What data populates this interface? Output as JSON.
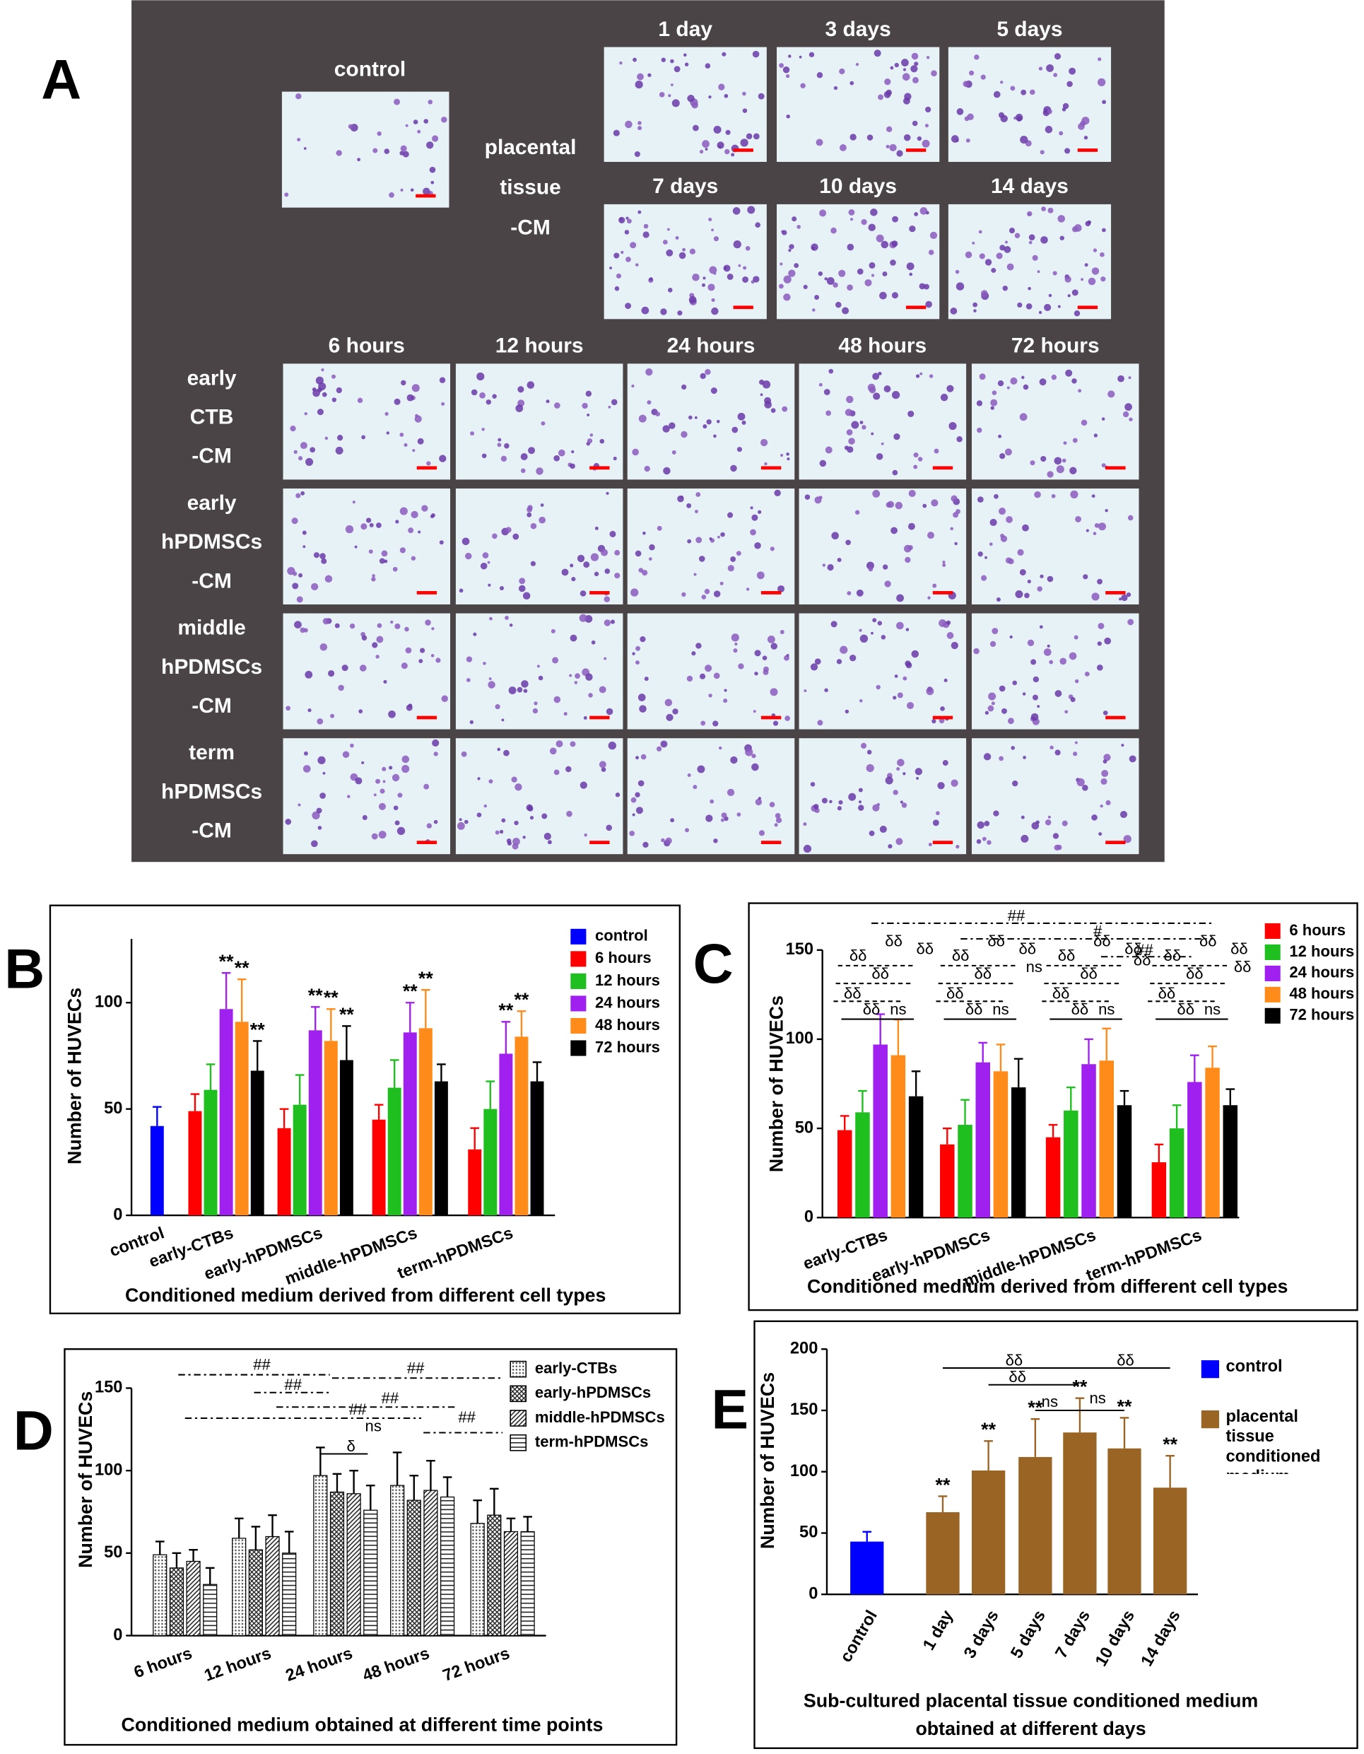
{
  "panel_a": {
    "panel_label": "A",
    "control": "control",
    "tissue_label": [
      "placental",
      "tissue",
      "-CM"
    ],
    "tissue_days": [
      "1 day",
      "3 days",
      "5 days",
      "7 days",
      "10 days",
      "14 days"
    ],
    "hours": [
      "6 hours",
      "12 hours",
      "24 hours",
      "48 hours",
      "72 hours"
    ],
    "rows": [
      [
        "early",
        "CTB",
        "-CM"
      ],
      [
        "early",
        "hPDMSCs",
        "-CM"
      ],
      [
        "middle",
        "hPDMSCs",
        "-CM"
      ],
      [
        "term",
        "hPDMSCs",
        "-CM"
      ]
    ]
  },
  "chart_data": [
    {
      "type": "bar",
      "panel_label": "B",
      "title": "Conditioned medium derived from different cell types",
      "y_label": "Number of HUVECs",
      "categories": [
        "control",
        "early-CTBs",
        "early-hPDMSCs",
        "middle-hPDMSCs",
        "term-hPDMSCs"
      ],
      "ylim": [
        0,
        130
      ],
      "yticks": [
        0,
        50,
        100
      ],
      "series": [
        {
          "name": "control",
          "color": "#0000ff",
          "values": [
            42,
            null,
            null,
            null,
            null
          ],
          "errors": [
            9,
            null,
            null,
            null,
            null
          ]
        },
        {
          "name": "6 hours",
          "color": "#ff0000",
          "values": [
            null,
            49,
            41,
            45,
            31
          ],
          "errors": [
            null,
            8,
            9,
            7,
            10
          ]
        },
        {
          "name": "12 hours",
          "color": "#1fbf1f",
          "values": [
            null,
            59,
            52,
            60,
            50
          ],
          "errors": [
            null,
            12,
            14,
            13,
            13
          ]
        },
        {
          "name": "24 hours",
          "color": "#a020f0",
          "values": [
            null,
            97,
            87,
            86,
            76
          ],
          "errors": [
            null,
            17,
            11,
            14,
            15
          ],
          "sig": [
            null,
            "**",
            "**",
            "**",
            "**"
          ]
        },
        {
          "name": "48 hours",
          "color": "#ff8c1a",
          "values": [
            null,
            91,
            82,
            88,
            84
          ],
          "errors": [
            null,
            20,
            15,
            18,
            12
          ],
          "sig": [
            null,
            "**",
            "**",
            "**",
            "**"
          ]
        },
        {
          "name": "72 hours",
          "color": "#000000",
          "values": [
            null,
            68,
            73,
            63,
            63
          ],
          "errors": [
            null,
            14,
            16,
            8,
            9
          ],
          "sig": [
            null,
            "**",
            "**",
            null,
            null
          ]
        }
      ]
    },
    {
      "type": "bar",
      "panel_label": "C",
      "title": "Conditioned medium derived from different cell types",
      "y_label": "Number of HUVECs",
      "categories": [
        "early-CTBs",
        "early-hPDMSCs",
        "middle-hPDMSCs",
        "term-hPDMSCs"
      ],
      "ylim": [
        0,
        150
      ],
      "yticks": [
        0,
        50,
        100,
        150
      ],
      "series": [
        {
          "name": "6 hours",
          "color": "#ff0000",
          "values": [
            49,
            41,
            45,
            31
          ],
          "errors": [
            8,
            9,
            7,
            10
          ]
        },
        {
          "name": "12 hours",
          "color": "#1fbf1f",
          "values": [
            59,
            52,
            60,
            50
          ],
          "errors": [
            12,
            14,
            13,
            13
          ]
        },
        {
          "name": "24 hours",
          "color": "#a020f0",
          "values": [
            97,
            87,
            86,
            76
          ],
          "errors": [
            17,
            11,
            14,
            15
          ]
        },
        {
          "name": "48 hours",
          "color": "#ff8c1a",
          "values": [
            91,
            82,
            88,
            84
          ],
          "errors": [
            20,
            15,
            18,
            12
          ]
        },
        {
          "name": "72 hours",
          "color": "#000000",
          "values": [
            68,
            73,
            63,
            63
          ],
          "errors": [
            14,
            16,
            8,
            9
          ]
        }
      ],
      "annotations": [
        "δδ",
        "δδ",
        "δδ",
        "δδ",
        "δδ",
        "δδ",
        "ns",
        "δδ",
        "δδ",
        "δδ",
        "δδ",
        "δδ",
        "δδ",
        "ns",
        "δδ",
        "δδ",
        "δδ",
        "δδ",
        "δδ",
        "δδ",
        "ns",
        "δδ",
        "δδ",
        "δδ",
        "δδ",
        "δδ",
        "δδ",
        "ns",
        "##",
        "#",
        "##",
        "ns",
        "δδ",
        "δδ"
      ]
    },
    {
      "type": "bar",
      "panel_label": "D",
      "title": "Conditioned medium obtained at different time points",
      "y_label": "Number of HUVECs",
      "categories": [
        "6 hours",
        "12 hours",
        "24 hours",
        "48 hours",
        "72 hours"
      ],
      "ylim": [
        0,
        150
      ],
      "yticks": [
        0,
        50,
        100,
        150
      ],
      "series": [
        {
          "name": "early-CTBs",
          "pattern": "dots",
          "values": [
            49,
            59,
            97,
            91,
            68
          ],
          "errors": [
            8,
            12,
            17,
            20,
            14
          ]
        },
        {
          "name": "early-hPDMSCs",
          "pattern": "crosshatch",
          "values": [
            41,
            52,
            87,
            82,
            73
          ],
          "errors": [
            9,
            14,
            11,
            15,
            16
          ]
        },
        {
          "name": "middle-hPDMSCs",
          "pattern": "diagonal",
          "values": [
            45,
            60,
            86,
            88,
            63
          ],
          "errors": [
            7,
            13,
            14,
            18,
            8
          ]
        },
        {
          "name": "term-hPDMSCs",
          "pattern": "horizontal",
          "values": [
            31,
            50,
            76,
            84,
            63
          ],
          "errors": [
            10,
            13,
            15,
            12,
            9
          ]
        }
      ],
      "annotations": [
        "##",
        "##",
        "##",
        "##",
        "##",
        "ns",
        "##",
        "δ"
      ]
    },
    {
      "type": "bar",
      "panel_label": "E",
      "title": "Sub-cultured placental tissue conditioned medium obtained at different days",
      "y_label": "Number of HUVECs",
      "categories": [
        "control",
        "1 day",
        "3 days",
        "5 days",
        "7 days",
        "10 days",
        "14 days"
      ],
      "ylim": [
        0,
        200
      ],
      "yticks": [
        0,
        50,
        100,
        150,
        200
      ],
      "series": [
        {
          "name": "control",
          "color": "#0000ff",
          "values": [
            43,
            null,
            null,
            null,
            null,
            null,
            null
          ],
          "errors": [
            8,
            null,
            null,
            null,
            null,
            null,
            null
          ]
        },
        {
          "name": "placental tissue conditioned medium",
          "color": "#9a6524",
          "values": [
            null,
            67,
            101,
            112,
            132,
            119,
            87
          ],
          "errors": [
            null,
            13,
            24,
            31,
            28,
            25,
            26
          ],
          "sig": [
            null,
            "**",
            "**",
            "**",
            "**",
            "**",
            "**"
          ]
        }
      ],
      "annotations": [
        "δδ",
        "δδ",
        "ns",
        "ns",
        "δδ"
      ]
    }
  ]
}
